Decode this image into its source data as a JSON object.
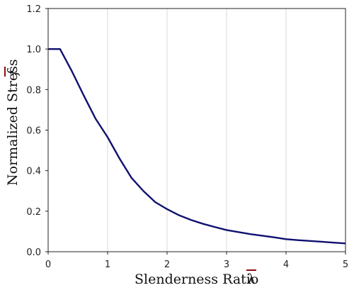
{
  "chart_data": {
    "type": "line",
    "title": "",
    "xlabel": "Slenderness Ratio",
    "xlabel_symbol": "λ",
    "ylabel": "Normalized Stress",
    "ylabel_symbol": "f",
    "xlim": [
      0,
      5
    ],
    "ylim": [
      0,
      1.2
    ],
    "xticks": [
      "0",
      "1",
      "2",
      "3",
      "4",
      "5"
    ],
    "yticks": [
      "0.0",
      "0.2",
      "0.4",
      "0.6",
      "0.8",
      "1.0",
      "1.2"
    ],
    "grid": "vertical",
    "legend": "none",
    "series": [
      {
        "color": "#101070",
        "x": [
          0,
          0.2,
          0.4,
          0.6,
          0.8,
          1.0,
          1.2,
          1.4,
          1.6,
          1.8,
          2.0,
          2.2,
          2.4,
          2.6,
          2.8,
          3.0,
          3.2,
          3.4,
          3.6,
          3.8,
          4.0,
          4.2,
          4.4,
          4.6,
          4.8,
          5.0
        ],
        "y": [
          1.0,
          1.0,
          0.89,
          0.77,
          0.655,
          0.565,
          0.46,
          0.365,
          0.3,
          0.245,
          0.21,
          0.18,
          0.157,
          0.138,
          0.122,
          0.107,
          0.097,
          0.087,
          0.079,
          0.071,
          0.062,
          0.057,
          0.053,
          0.049,
          0.045,
          0.041
        ]
      }
    ]
  }
}
